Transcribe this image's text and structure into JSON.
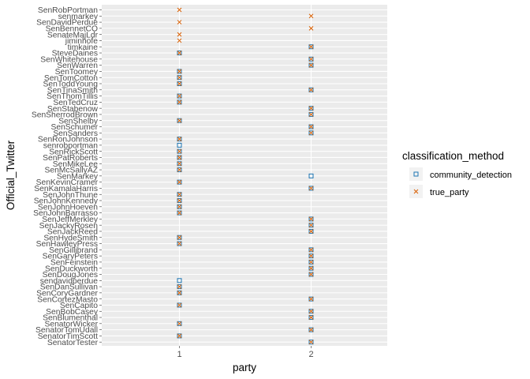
{
  "chart_data": {
    "type": "scatter",
    "xlabel": "party",
    "ylabel": "Official_Twitter",
    "x_categories": [
      "1",
      "2"
    ],
    "y_categories": [
      "SenRobPortman",
      "senmarkey",
      "SenDavidPerdue",
      "SenBennetCO",
      "SenateMajLdr",
      "jiminhofe",
      "timkaine",
      "SteveDaines",
      "SenWhitehouse",
      "SenWarren",
      "SenToomey",
      "SenTomCotton",
      "SenToddYoung",
      "SenTinaSmith",
      "SenThomTillis",
      "SenTedCruz",
      "SenStabenow",
      "SenSherrodBrown",
      "SenShelby",
      "SenSchumer",
      "SenSanders",
      "SenRonJohnson",
      "senrobportman",
      "SenRickScott",
      "SenPatRoberts",
      "SenMikeLee",
      "SenMcSallyAZ",
      "SenMarkey",
      "SenKevinCramer",
      "SenKamalaHarris",
      "SenJohnThune",
      "SenJohnKennedy",
      "SenJohnHoeven",
      "SenJohnBarrasso",
      "SenJeffMerkley",
      "SenJackyRosen",
      "SenJackReed",
      "SenHydeSmith",
      "SenHawleyPress",
      "SenGillibrand",
      "SenGaryPeters",
      "SenFeinstein",
      "SenDuckworth",
      "SenDougJones",
      "sendavidperdue",
      "SenDanSullivan",
      "SenCoryGardner",
      "SenCortezMasto",
      "SenCapito",
      "SenBobCasey",
      "SenBlumenthal",
      "SenatorWicker",
      "SenatorTomUdall",
      "SenatorTimScott",
      "SenatorTester"
    ],
    "legend": {
      "title": "classification_method",
      "placement": "right",
      "entries": [
        {
          "name": "community_detection",
          "color": "#1f77b4",
          "shape": "square"
        },
        {
          "name": "true_party",
          "color": "#d95f02",
          "shape": "cross"
        }
      ]
    },
    "series": [
      {
        "name": "community_detection",
        "color": "#1f77b4",
        "points": [
          {
            "x": "1",
            "y": "SteveDaines"
          },
          {
            "x": "2",
            "y": "timkaine"
          },
          {
            "x": "2",
            "y": "SenWhitehouse"
          },
          {
            "x": "2",
            "y": "SenWarren"
          },
          {
            "x": "1",
            "y": "SenToomey"
          },
          {
            "x": "1",
            "y": "SenTomCotton"
          },
          {
            "x": "1",
            "y": "SenToddYoung"
          },
          {
            "x": "2",
            "y": "SenTinaSmith"
          },
          {
            "x": "1",
            "y": "SenThomTillis"
          },
          {
            "x": "1",
            "y": "SenTedCruz"
          },
          {
            "x": "2",
            "y": "SenStabenow"
          },
          {
            "x": "2",
            "y": "SenSherrodBrown"
          },
          {
            "x": "1",
            "y": "SenShelby"
          },
          {
            "x": "2",
            "y": "SenSchumer"
          },
          {
            "x": "2",
            "y": "SenSanders"
          },
          {
            "x": "1",
            "y": "SenRonJohnson"
          },
          {
            "x": "1",
            "y": "senrobportman"
          },
          {
            "x": "1",
            "y": "SenRickScott"
          },
          {
            "x": "1",
            "y": "SenPatRoberts"
          },
          {
            "x": "1",
            "y": "SenMikeLee"
          },
          {
            "x": "1",
            "y": "SenMcSallyAZ"
          },
          {
            "x": "2",
            "y": "SenMarkey"
          },
          {
            "x": "1",
            "y": "SenKevinCramer"
          },
          {
            "x": "2",
            "y": "SenKamalaHarris"
          },
          {
            "x": "1",
            "y": "SenJohnThune"
          },
          {
            "x": "1",
            "y": "SenJohnKennedy"
          },
          {
            "x": "1",
            "y": "SenJohnHoeven"
          },
          {
            "x": "1",
            "y": "SenJohnBarrasso"
          },
          {
            "x": "2",
            "y": "SenJeffMerkley"
          },
          {
            "x": "2",
            "y": "SenJackyRosen"
          },
          {
            "x": "2",
            "y": "SenJackReed"
          },
          {
            "x": "1",
            "y": "SenHydeSmith"
          },
          {
            "x": "1",
            "y": "SenHawleyPress"
          },
          {
            "x": "2",
            "y": "SenGillibrand"
          },
          {
            "x": "2",
            "y": "SenGaryPeters"
          },
          {
            "x": "2",
            "y": "SenFeinstein"
          },
          {
            "x": "2",
            "y": "SenDuckworth"
          },
          {
            "x": "2",
            "y": "SenDougJones"
          },
          {
            "x": "1",
            "y": "sendavidperdue"
          },
          {
            "x": "1",
            "y": "SenDanSullivan"
          },
          {
            "x": "1",
            "y": "SenCoryGardner"
          },
          {
            "x": "2",
            "y": "SenCortezMasto"
          },
          {
            "x": "1",
            "y": "SenCapito"
          },
          {
            "x": "2",
            "y": "SenBobCasey"
          },
          {
            "x": "2",
            "y": "SenBlumenthal"
          },
          {
            "x": "1",
            "y": "SenatorWicker"
          },
          {
            "x": "2",
            "y": "SenatorTomUdall"
          },
          {
            "x": "1",
            "y": "SenatorTimScott"
          },
          {
            "x": "2",
            "y": "SenatorTester"
          }
        ]
      },
      {
        "name": "true_party",
        "color": "#d95f02",
        "points": [
          {
            "x": "1",
            "y": "SenRobPortman"
          },
          {
            "x": "2",
            "y": "senmarkey"
          },
          {
            "x": "1",
            "y": "SenDavidPerdue"
          },
          {
            "x": "2",
            "y": "SenBennetCO"
          },
          {
            "x": "1",
            "y": "SenateMajLdr"
          },
          {
            "x": "1",
            "y": "jiminhofe"
          },
          {
            "x": "2",
            "y": "timkaine"
          },
          {
            "x": "1",
            "y": "SteveDaines"
          },
          {
            "x": "2",
            "y": "SenWhitehouse"
          },
          {
            "x": "2",
            "y": "SenWarren"
          },
          {
            "x": "1",
            "y": "SenToomey"
          },
          {
            "x": "1",
            "y": "SenTomCotton"
          },
          {
            "x": "1",
            "y": "SenToddYoung"
          },
          {
            "x": "2",
            "y": "SenTinaSmith"
          },
          {
            "x": "1",
            "y": "SenThomTillis"
          },
          {
            "x": "1",
            "y": "SenTedCruz"
          },
          {
            "x": "2",
            "y": "SenStabenow"
          },
          {
            "x": "2",
            "y": "SenSherrodBrown"
          },
          {
            "x": "1",
            "y": "SenShelby"
          },
          {
            "x": "2",
            "y": "SenSchumer"
          },
          {
            "x": "2",
            "y": "SenSanders"
          },
          {
            "x": "1",
            "y": "SenRonJohnson"
          },
          {
            "x": "1",
            "y": "SenRickScott"
          },
          {
            "x": "1",
            "y": "SenPatRoberts"
          },
          {
            "x": "1",
            "y": "SenMikeLee"
          },
          {
            "x": "1",
            "y": "SenMcSallyAZ"
          },
          {
            "x": "1",
            "y": "SenKevinCramer"
          },
          {
            "x": "2",
            "y": "SenKamalaHarris"
          },
          {
            "x": "1",
            "y": "SenJohnThune"
          },
          {
            "x": "1",
            "y": "SenJohnKennedy"
          },
          {
            "x": "1",
            "y": "SenJohnHoeven"
          },
          {
            "x": "1",
            "y": "SenJohnBarrasso"
          },
          {
            "x": "2",
            "y": "SenJeffMerkley"
          },
          {
            "x": "2",
            "y": "SenJackyRosen"
          },
          {
            "x": "2",
            "y": "SenJackReed"
          },
          {
            "x": "1",
            "y": "SenHydeSmith"
          },
          {
            "x": "1",
            "y": "SenHawleyPress"
          },
          {
            "x": "2",
            "y": "SenGillibrand"
          },
          {
            "x": "2",
            "y": "SenGaryPeters"
          },
          {
            "x": "2",
            "y": "SenFeinstein"
          },
          {
            "x": "2",
            "y": "SenDuckworth"
          },
          {
            "x": "2",
            "y": "SenDougJones"
          },
          {
            "x": "1",
            "y": "SenDanSullivan"
          },
          {
            "x": "1",
            "y": "SenCoryGardner"
          },
          {
            "x": "2",
            "y": "SenCortezMasto"
          },
          {
            "x": "1",
            "y": "SenCapito"
          },
          {
            "x": "2",
            "y": "SenBobCasey"
          },
          {
            "x": "2",
            "y": "SenBlumenthal"
          },
          {
            "x": "1",
            "y": "SenatorWicker"
          },
          {
            "x": "2",
            "y": "SenatorTomUdall"
          },
          {
            "x": "1",
            "y": "SenatorTimScott"
          },
          {
            "x": "2",
            "y": "SenatorTester"
          }
        ]
      }
    ],
    "panel_background": "#ebebeb",
    "grid": true
  }
}
